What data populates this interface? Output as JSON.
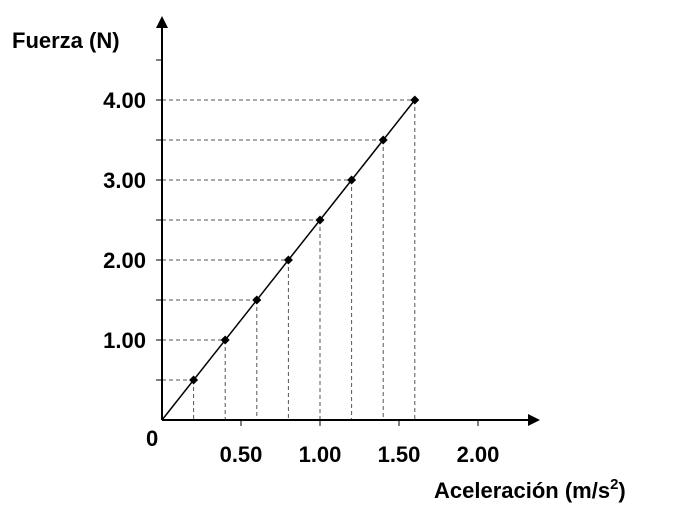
{
  "chart_data": {
    "type": "scatter",
    "ylabel": "Fuerza (N)",
    "xlabel": "Aceleración (m/s",
    "xlabel_sup": "2",
    "xlabel_tail": ")",
    "origin_label": "0",
    "x_ticks": [
      "0.50",
      "1.00",
      "1.50",
      "2.00"
    ],
    "y_ticks": [
      "1.00",
      "2.00",
      "3.00",
      "4.00"
    ],
    "xlim": [
      0,
      2.4
    ],
    "ylim": [
      0,
      4.5
    ],
    "series": [
      {
        "x": [
          0.2,
          0.4,
          0.6,
          0.8,
          1.0,
          1.2,
          1.4,
          1.6
        ],
        "y": [
          0.5,
          1.0,
          1.5,
          2.0,
          2.5,
          3.0,
          3.5,
          4.0
        ]
      }
    ],
    "fit_line": {
      "from": [
        0,
        0
      ],
      "to": [
        1.6,
        4.0
      ]
    },
    "grid": "dashed guide lines from each point to both axes",
    "colors": {
      "axis": "#000000",
      "grid": "#555555",
      "points": "#000000"
    }
  }
}
